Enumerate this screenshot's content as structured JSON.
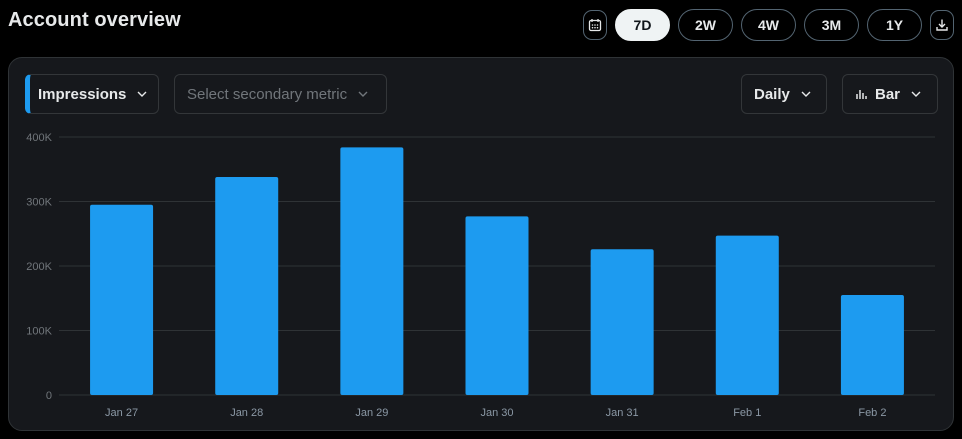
{
  "header": {
    "title": "Account overview",
    "ranges": [
      "7D",
      "2W",
      "4W",
      "3M",
      "1Y"
    ],
    "active_range": "7D"
  },
  "controls": {
    "primary_metric": "Impressions",
    "secondary_placeholder": "Select secondary metric",
    "granularity": "Daily",
    "chart_type_label": "Bar"
  },
  "chart_data": {
    "type": "bar",
    "categories": [
      "Jan 27",
      "Jan 28",
      "Jan 29",
      "Jan 30",
      "Jan 31",
      "Feb 1",
      "Feb 2"
    ],
    "values": [
      295000,
      338000,
      384000,
      277000,
      226000,
      247000,
      155000
    ],
    "ylim": [
      0,
      400000
    ],
    "yticks": [
      0,
      100000,
      200000,
      300000,
      400000
    ],
    "ytick_labels": [
      "0",
      "100K",
      "200K",
      "300K",
      "400K"
    ],
    "grid": true,
    "bar_color": "#1d9bf0"
  },
  "colors": {
    "accent": "#1d9bf0",
    "card_bg": "#16181c"
  }
}
